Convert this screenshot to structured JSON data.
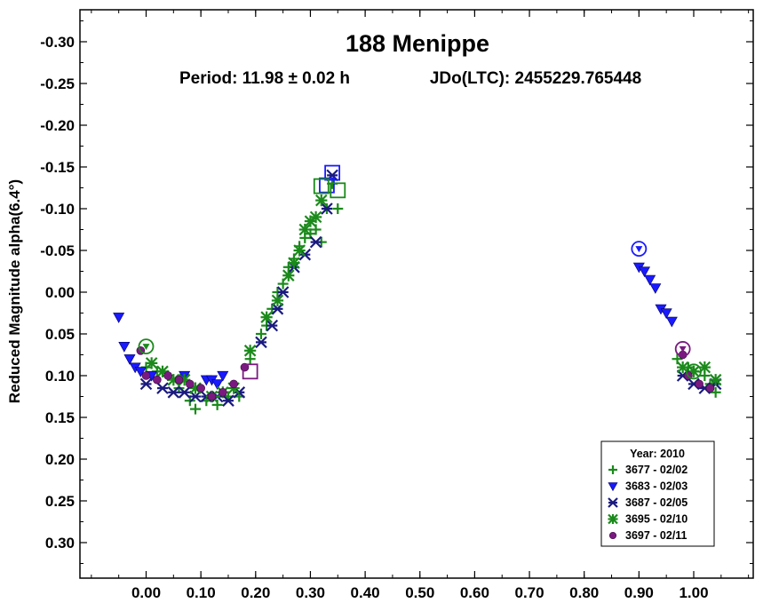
{
  "chart_data": {
    "type": "scatter",
    "title": "188 Menippe",
    "subtitle_period": "Period: 11.98 ± 0.02 h",
    "subtitle_epoch": "JDo(LTC): 2455229.765448",
    "xlabel": "",
    "ylabel": "Reduced Magnitude alpha(6.4°)",
    "xlim": [
      -0.12,
      1.12
    ],
    "ylim": [
      0.335,
      -0.335
    ],
    "y_inverted": true,
    "grid": false,
    "legend_position": "bottom-right",
    "x_ticks": [
      "0.00",
      "0.10",
      "0.20",
      "0.30",
      "0.40",
      "0.50",
      "0.60",
      "0.70",
      "0.80",
      "0.90",
      "1.00"
    ],
    "y_ticks": [
      "-0.30",
      "-0.25",
      "-0.20",
      "-0.15",
      "-0.10",
      "-0.05",
      "0.00",
      "0.05",
      "0.10",
      "0.15",
      "0.20",
      "0.25",
      "0.30"
    ],
    "legend_title": "Year: 2010",
    "series": [
      {
        "name": "3677 - 02/02",
        "marker": "plus",
        "color": "#1a8a1a",
        "points": [
          [
            0.0,
            0.09
          ],
          [
            0.02,
            0.095
          ],
          [
            0.04,
            0.1
          ],
          [
            0.06,
            0.115
          ],
          [
            0.08,
            0.13
          ],
          [
            0.09,
            0.14
          ],
          [
            0.11,
            0.13
          ],
          [
            0.13,
            0.135
          ],
          [
            0.15,
            0.125
          ],
          [
            0.17,
            0.125
          ],
          [
            0.19,
            0.08
          ],
          [
            0.21,
            0.05
          ],
          [
            0.22,
            0.04
          ],
          [
            0.23,
            0.02
          ],
          [
            0.24,
            0.0
          ],
          [
            0.25,
            -0.01
          ],
          [
            0.26,
            -0.03
          ],
          [
            0.27,
            -0.04
          ],
          [
            0.28,
            -0.055
          ],
          [
            0.29,
            -0.065
          ],
          [
            0.3,
            -0.07
          ],
          [
            0.31,
            -0.075
          ],
          [
            0.32,
            -0.06
          ],
          [
            0.33,
            -0.1
          ],
          [
            0.34,
            -0.13
          ],
          [
            0.35,
            -0.1
          ],
          [
            0.97,
            0.08
          ],
          [
            0.99,
            0.09
          ],
          [
            1.0,
            0.095
          ],
          [
            1.02,
            0.1
          ],
          [
            1.03,
            0.11
          ],
          [
            1.04,
            0.12
          ]
        ]
      },
      {
        "name": "3683 - 02/03",
        "marker": "triangle-down",
        "color": "#1a1aff",
        "points": [
          [
            -0.05,
            0.03
          ],
          [
            -0.04,
            0.065
          ],
          [
            -0.03,
            0.08
          ],
          [
            -0.02,
            0.09
          ],
          [
            -0.01,
            0.095
          ],
          [
            0.01,
            0.1
          ],
          [
            0.07,
            0.1
          ],
          [
            0.11,
            0.105
          ],
          [
            0.12,
            0.105
          ],
          [
            0.13,
            0.11
          ],
          [
            0.14,
            0.1
          ],
          [
            0.9,
            -0.03
          ],
          [
            0.91,
            -0.025
          ],
          [
            0.92,
            -0.015
          ],
          [
            0.93,
            -0.005
          ],
          [
            0.94,
            0.02
          ],
          [
            0.95,
            0.025
          ],
          [
            0.96,
            0.035
          ]
        ]
      },
      {
        "name": "3687 - 02/05",
        "marker": "asterisk",
        "color": "#1a1a80",
        "points": [
          [
            0.0,
            0.11
          ],
          [
            0.03,
            0.115
          ],
          [
            0.05,
            0.12
          ],
          [
            0.07,
            0.12
          ],
          [
            0.09,
            0.125
          ],
          [
            0.11,
            0.125
          ],
          [
            0.13,
            0.125
          ],
          [
            0.15,
            0.13
          ],
          [
            0.17,
            0.12
          ],
          [
            0.21,
            0.06
          ],
          [
            0.23,
            0.04
          ],
          [
            0.24,
            0.02
          ],
          [
            0.25,
            0.0
          ],
          [
            0.27,
            -0.03
          ],
          [
            0.29,
            -0.045
          ],
          [
            0.31,
            -0.06
          ],
          [
            0.33,
            -0.1
          ],
          [
            0.34,
            -0.14
          ],
          [
            0.98,
            0.1
          ],
          [
            1.0,
            0.11
          ],
          [
            1.02,
            0.115
          ],
          [
            1.04,
            0.11
          ]
        ]
      },
      {
        "name": "3695 - 02/10",
        "marker": "star",
        "color": "#1a8a1a",
        "points": [
          [
            0.01,
            0.085
          ],
          [
            0.03,
            0.095
          ],
          [
            0.05,
            0.105
          ],
          [
            0.07,
            0.105
          ],
          [
            0.09,
            0.115
          ],
          [
            0.12,
            0.125
          ],
          [
            0.14,
            0.12
          ],
          [
            0.16,
            0.115
          ],
          [
            0.19,
            0.07
          ],
          [
            0.22,
            0.03
          ],
          [
            0.24,
            0.01
          ],
          [
            0.26,
            -0.02
          ],
          [
            0.27,
            -0.035
          ],
          [
            0.28,
            -0.05
          ],
          [
            0.29,
            -0.075
          ],
          [
            0.3,
            -0.085
          ],
          [
            0.31,
            -0.09
          ],
          [
            0.32,
            -0.11
          ],
          [
            0.98,
            0.09
          ],
          [
            1.0,
            0.095
          ],
          [
            1.02,
            0.09
          ],
          [
            1.04,
            0.105
          ]
        ]
      },
      {
        "name": "3697 - 02/11",
        "marker": "circle",
        "color": "#7a1a80",
        "points": [
          [
            -0.01,
            0.07
          ],
          [
            0.0,
            0.1
          ],
          [
            0.02,
            0.105
          ],
          [
            0.04,
            0.1
          ],
          [
            0.06,
            0.105
          ],
          [
            0.08,
            0.11
          ],
          [
            0.1,
            0.115
          ],
          [
            0.12,
            0.125
          ],
          [
            0.14,
            0.12
          ],
          [
            0.16,
            0.11
          ],
          [
            0.18,
            0.09
          ],
          [
            0.98,
            0.075
          ],
          [
            0.99,
            0.1
          ],
          [
            1.01,
            0.11
          ],
          [
            1.03,
            0.115
          ]
        ]
      },
      {
        "name": "",
        "marker": "circle-open",
        "color": "#1a8a1a",
        "points": [
          [
            0.0,
            0.065
          ],
          [
            1.0,
            0.095
          ]
        ]
      },
      {
        "name": "",
        "marker": "circle-open",
        "color": "#1a1aff",
        "points": [
          [
            0.9,
            -0.052
          ]
        ]
      },
      {
        "name": "",
        "marker": "circle-open",
        "color": "#7a1a80",
        "points": [
          [
            0.98,
            0.068
          ]
        ]
      },
      {
        "name": "",
        "marker": "square-open",
        "color": "#1a1aff",
        "points": [
          [
            0.34,
            -0.143
          ],
          [
            0.33,
            -0.128
          ]
        ]
      },
      {
        "name": "",
        "marker": "square-open",
        "color": "#1a8a1a",
        "points": [
          [
            0.32,
            -0.127
          ],
          [
            0.35,
            -0.122
          ]
        ]
      },
      {
        "name": "",
        "marker": "square-open",
        "color": "#7a1a80",
        "points": [
          [
            0.19,
            0.095
          ]
        ]
      }
    ],
    "legend_entries": [
      {
        "label": "3677 - 02/02",
        "marker": "plus",
        "color": "#1a8a1a"
      },
      {
        "label": "3683 - 02/03",
        "marker": "triangle-down",
        "color": "#1a1aff"
      },
      {
        "label": "3687 - 02/05",
        "marker": "asterisk",
        "color": "#1a1a80"
      },
      {
        "label": "3695 - 02/10",
        "marker": "star",
        "color": "#1a8a1a"
      },
      {
        "label": "3697 - 02/11",
        "marker": "circle",
        "color": "#7a1a80"
      }
    ]
  }
}
